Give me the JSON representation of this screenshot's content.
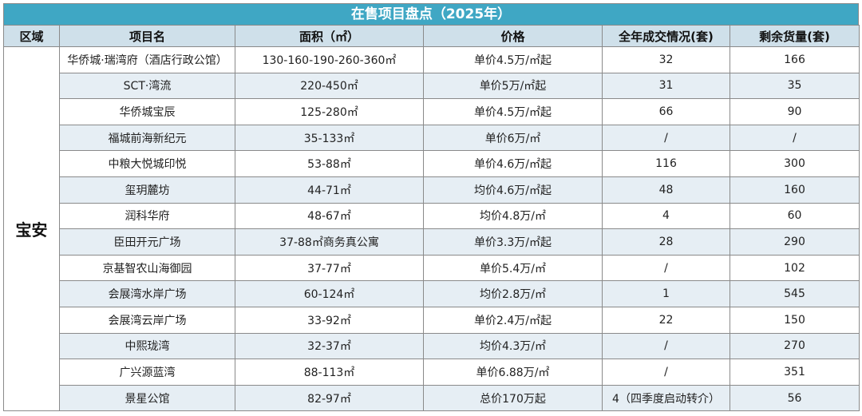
{
  "title": "在售项目盘点（2025年）",
  "headers": {
    "district": "区域",
    "project": "项目名",
    "area": "面积（㎡）",
    "price": "价格",
    "sales": "全年成交情况(套)",
    "remaining": "剩余货量(套)"
  },
  "district": "宝安",
  "rows": [
    {
      "project": "华侨城·瑞湾府（酒店行政公馆）",
      "area": "130-160-190-260-360㎡",
      "price": "单价4.5万/㎡起",
      "sales": "32",
      "remaining": "166"
    },
    {
      "project": "SCT·湾流",
      "area": "220-450㎡",
      "price": "单价5万/㎡起",
      "sales": "31",
      "remaining": "35"
    },
    {
      "project": "华侨城宝辰",
      "area": "125-280㎡",
      "price": "单价4.5万/㎡起",
      "sales": "66",
      "remaining": "90"
    },
    {
      "project": "福城前海新纪元",
      "area": "35-133㎡",
      "price": "单价6万/㎡",
      "sales": "/",
      "remaining": "/"
    },
    {
      "project": "中粮大悦城印悦",
      "area": "53-88㎡",
      "price": "单价4.6万/㎡起",
      "sales": "116",
      "remaining": "300"
    },
    {
      "project": "玺玥麓坊",
      "area": "44-71㎡",
      "price": "均价4.6万/㎡起",
      "sales": "48",
      "remaining": "160"
    },
    {
      "project": "润科华府",
      "area": "48-67㎡",
      "price": "均价4.8万/㎡",
      "sales": "4",
      "remaining": "60"
    },
    {
      "project": "臣田开元广场",
      "area": "37-88㎡商务真公寓",
      "price": "单价3.3万/㎡起",
      "sales": "28",
      "remaining": "290"
    },
    {
      "project": "京基智农山海御园",
      "area": "37-77㎡",
      "price": "单价5.4万/㎡",
      "sales": "/",
      "remaining": "102"
    },
    {
      "project": "会展湾水岸广场",
      "area": "60-124㎡",
      "price": "均价2.8万/㎡",
      "sales": "1",
      "remaining": "545"
    },
    {
      "project": "会展湾云岸广场",
      "area": "33-92㎡",
      "price": "单价2.4万/㎡起",
      "sales": "22",
      "remaining": "150"
    },
    {
      "project": "中熙珑湾",
      "area": "32-37㎡",
      "price": "均价4.3万/㎡",
      "sales": "/",
      "remaining": "270"
    },
    {
      "project": "广兴源蓝湾",
      "area": "88-113㎡",
      "price": "单价6.88万/㎡",
      "sales": "/",
      "remaining": "351"
    },
    {
      "project": "景星公馆",
      "area": "82-97㎡",
      "price": "总价170万起",
      "sales": "4（四季度启动转介）",
      "remaining": "56"
    }
  ]
}
